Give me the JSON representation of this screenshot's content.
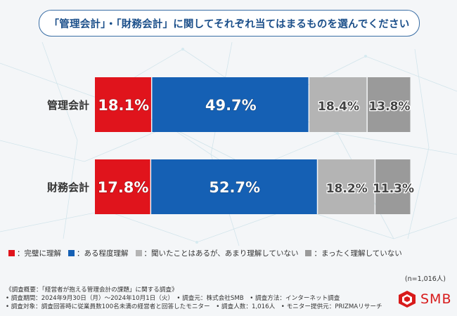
{
  "title": "「管理会計」・「財務会計」に関してそれぞれ当てはまるものを選んでください",
  "chart_data": {
    "type": "bar",
    "stacked": true,
    "orientation": "horizontal",
    "categories": [
      "管理会計",
      "財務会計"
    ],
    "series": [
      {
        "name": "完璧に理解",
        "color": "#e0141c",
        "values": [
          18.1,
          17.8
        ]
      },
      {
        "name": "ある程度理解",
        "color": "#1560b4",
        "values": [
          49.7,
          52.7
        ]
      },
      {
        "name": "聞いたことはあるが、あまり理解していない",
        "color": "#b4b4b4",
        "values": [
          18.4,
          18.2
        ]
      },
      {
        "name": "まったく理解していない",
        "color": "#9a9a9a",
        "values": [
          13.8,
          11.3
        ]
      }
    ],
    "xlim": [
      0,
      100
    ],
    "legend_position": "bottom"
  },
  "legend": {
    "prefix": "：",
    "items": [
      "完璧に理解",
      "ある程度理解",
      "聞いたことはあるが、あまり理解していない",
      "まったく理解していない"
    ]
  },
  "sample_size": "(n=1,016人)",
  "footer": {
    "line1": "《調査概要：「経営者が抱える管理会計の課題」に関する調査》",
    "line2": "• 調査期間：2024年9月30日（月）～2024年10月1日（火）　• 調査元：株式会社SMB　• 調査方法：インターネット調査",
    "line3": "• 調査対象：調査回答時に従業員数100名未満の経営者と回答したモニター　• 調査人数：1,016人　• モニター提供元：PRIZMAリサーチ"
  },
  "logo": {
    "text": "SMB",
    "color": "#d81b1b"
  }
}
